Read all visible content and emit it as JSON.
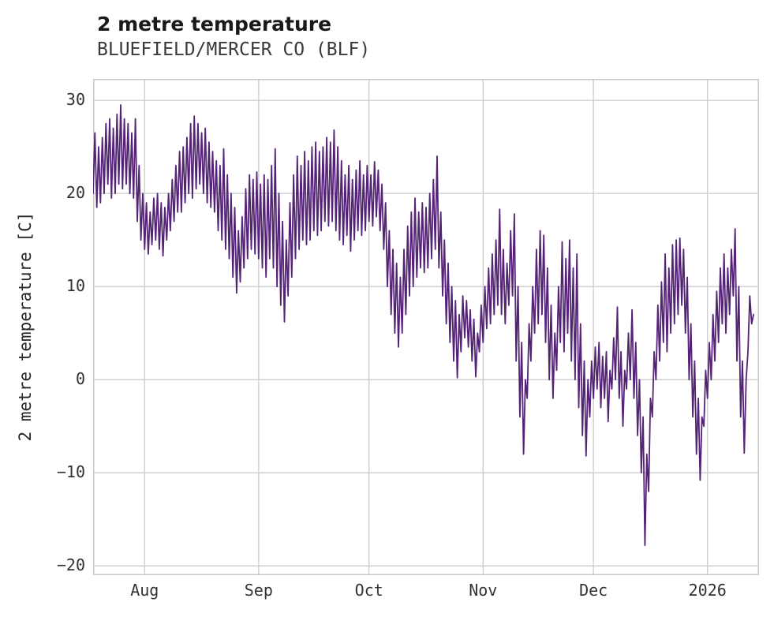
{
  "chart_data": {
    "type": "line",
    "title": "2 metre temperature",
    "subtitle": "BLUEFIELD/MERCER CO (BLF)",
    "xlabel": "",
    "ylabel": "2 metre temperature [C]",
    "line_color": "#552376",
    "grid": true,
    "grid_color": "#cccccc",
    "border_color": "#c8c8c8",
    "ylim": [
      -21,
      32.3
    ],
    "xlim_days": [
      0,
      181
    ],
    "yticks": [
      30,
      20,
      10,
      0,
      -10,
      -20
    ],
    "ytick_labels": [
      "30",
      "20",
      "10",
      "0",
      "−10",
      "−20"
    ],
    "xticks_days": [
      14,
      45,
      75,
      106,
      136,
      167
    ],
    "xtick_labels": [
      "Aug",
      "Sep",
      "Oct",
      "Nov",
      "Dec",
      "2026"
    ],
    "x_unit": "day index from start of series; two samples per day (daily low then daily high)",
    "daily_low": [
      20,
      18.5,
      19,
      20,
      21,
      19.5,
      20,
      21,
      20.5,
      21,
      20,
      19.5,
      17,
      15,
      14,
      13.5,
      14.5,
      15,
      14,
      13.3,
      15,
      16,
      17,
      18,
      18,
      19,
      20,
      19.5,
      20.5,
      21,
      20,
      19,
      18.5,
      18,
      16,
      15,
      14,
      13,
      11,
      9.3,
      10.5,
      12,
      13,
      14,
      13.5,
      13,
      12,
      11,
      13,
      12,
      10,
      8,
      6.2,
      9,
      11,
      13,
      14,
      15,
      14.5,
      15,
      16,
      15.5,
      16,
      17,
      16.5,
      17,
      16,
      15,
      14.5,
      15.5,
      13.8,
      15,
      16,
      15.5,
      16,
      17,
      16.5,
      17.5,
      16,
      14,
      10,
      7,
      5,
      3.5,
      5,
      7,
      9,
      10,
      11,
      12,
      11.5,
      12,
      13,
      14,
      12,
      9,
      6,
      4,
      2,
      0.2,
      3,
      4.5,
      3.5,
      2,
      0.3,
      3,
      4,
      5.5,
      6,
      7,
      8,
      7,
      6,
      8,
      9,
      2,
      -4,
      -8,
      -2,
      2,
      5,
      6,
      7,
      4,
      0,
      -2,
      1,
      4,
      3,
      5,
      2,
      0,
      -3,
      -6,
      -8.2,
      -4,
      -2,
      -1,
      -3,
      -2,
      -4.5,
      -1,
      0,
      -2,
      -5,
      -1,
      0,
      -2,
      -6,
      -10,
      -17.8,
      -12,
      -4,
      0,
      2,
      4,
      3,
      5,
      6,
      7,
      8,
      5,
      0,
      -4,
      -8,
      -10.8,
      -5,
      -2,
      0,
      2,
      4,
      6,
      5,
      7,
      9,
      2,
      -4,
      -7.9,
      3,
      6
    ],
    "daily_high": [
      26.5,
      25,
      26,
      27.5,
      28,
      27,
      28.5,
      29.5,
      28,
      27.5,
      26.5,
      28,
      23,
      20,
      19,
      18,
      19.5,
      20,
      19,
      18.5,
      20,
      21.5,
      23,
      24.5,
      25,
      26,
      27.5,
      28.3,
      27.5,
      26.5,
      27,
      25.5,
      24.5,
      23.5,
      23,
      24.8,
      22,
      20,
      18.5,
      16,
      17.5,
      20.5,
      22,
      21.5,
      22.3,
      21,
      22,
      21.5,
      23,
      24.8,
      20,
      17,
      15,
      19,
      22,
      24,
      23,
      24.5,
      23.5,
      25,
      25.5,
      24.5,
      25,
      26,
      25.5,
      26.8,
      25,
      23.5,
      22,
      23,
      21.5,
      22.5,
      23.5,
      22,
      23,
      22,
      23.4,
      22.5,
      21,
      19,
      16,
      14,
      12.5,
      11,
      14,
      16.5,
      18,
      19.5,
      18,
      19,
      18.5,
      20,
      21.5,
      24,
      18,
      15,
      12.5,
      10,
      8.5,
      7,
      9,
      8.5,
      7.5,
      6.5,
      5,
      8,
      10,
      12,
      13.5,
      15,
      18.3,
      14,
      12.5,
      16,
      17.8,
      10,
      4,
      0,
      6,
      10,
      14,
      16,
      15.5,
      12,
      8,
      5,
      10,
      14.8,
      13,
      15,
      12,
      13.5,
      6,
      2,
      0,
      2,
      3.5,
      4,
      2.5,
      3,
      1,
      4.5,
      7.8,
      3,
      1,
      5,
      7.5,
      4,
      0,
      -4,
      -8,
      -2,
      3,
      8,
      10.5,
      13.5,
      12,
      14.5,
      15,
      15.2,
      14,
      11,
      6,
      2,
      -2,
      -4,
      1,
      4,
      7,
      9.5,
      12,
      13.5,
      12,
      14,
      16.2,
      10,
      2,
      0,
      9,
      7
    ]
  }
}
